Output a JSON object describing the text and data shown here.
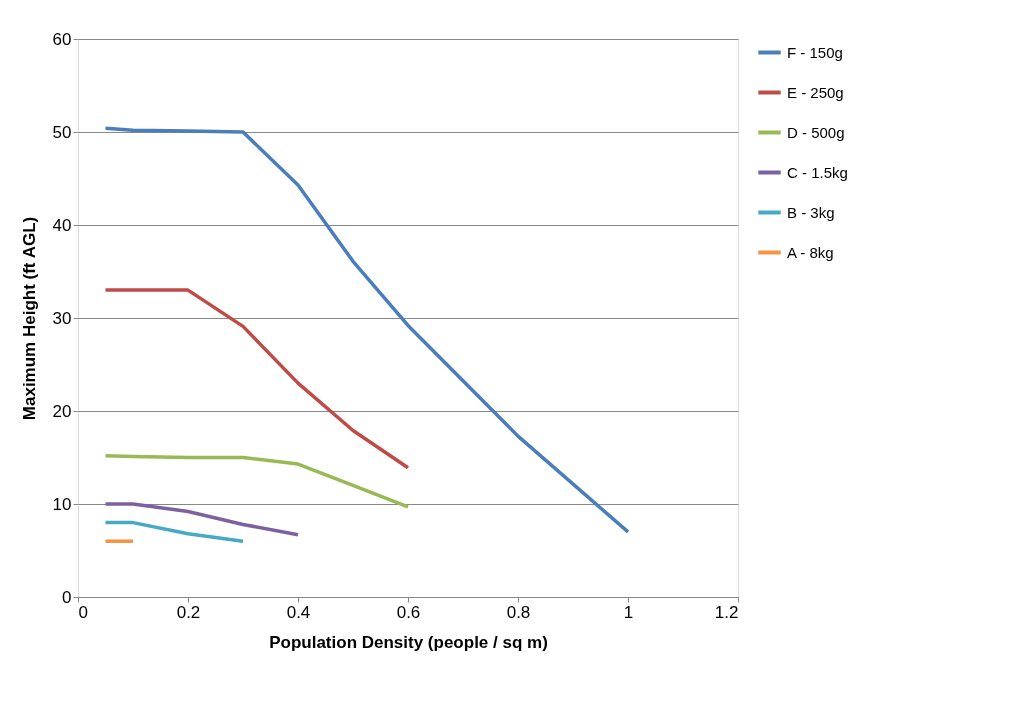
{
  "chart_data": {
    "type": "line",
    "xlabel": "Population Density (people / sq m)",
    "ylabel": "Maximum Height (ft AGL)",
    "xlim": [
      0,
      1.2
    ],
    "xticks": [
      0,
      0.2,
      0.4,
      0.6,
      0.8,
      1,
      1.2
    ],
    "ylim": [
      0,
      60
    ],
    "yticks": [
      0,
      10,
      20,
      30,
      40,
      50,
      60
    ],
    "grid": "y",
    "legend": "right",
    "marker": "none",
    "line_style": "solid",
    "series": [
      {
        "name": "F - 150g",
        "color": "#4a7ebb",
        "x": [
          0.05,
          0.1,
          0.2,
          0.3,
          0.4,
          0.5,
          0.6,
          0.8,
          1
        ],
        "values": [
          50.4,
          50.2,
          50.1,
          50,
          44.3,
          36.1,
          29.2,
          17.3,
          7
        ]
      },
      {
        "name": "E - 250g",
        "color": "#be4b48",
        "x": [
          0.05,
          0.1,
          0.2,
          0.3,
          0.4,
          0.5,
          0.6
        ],
        "values": [
          33,
          33,
          33,
          29.1,
          23,
          17.9,
          13.9
        ]
      },
      {
        "name": "D - 500g",
        "color": "#98b954",
        "x": [
          0.05,
          0.1,
          0.2,
          0.3,
          0.4,
          0.5,
          0.6
        ],
        "values": [
          15.2,
          15.1,
          15,
          15,
          14.3,
          12,
          9.7
        ]
      },
      {
        "name": "C - 1.5kg",
        "color": "#7d60a0",
        "x": [
          0.05,
          0.1,
          0.2,
          0.3,
          0.4
        ],
        "values": [
          10,
          10,
          9.2,
          7.8,
          6.7
        ]
      },
      {
        "name": "B - 3kg",
        "color": "#46aac5",
        "x": [
          0.05,
          0.1,
          0.2,
          0.3
        ],
        "values": [
          8,
          8,
          6.8,
          6
        ]
      },
      {
        "name": "A - 8kg",
        "color": "#f69240",
        "x": [
          0.05,
          0.1
        ],
        "values": [
          6,
          6
        ]
      }
    ]
  }
}
